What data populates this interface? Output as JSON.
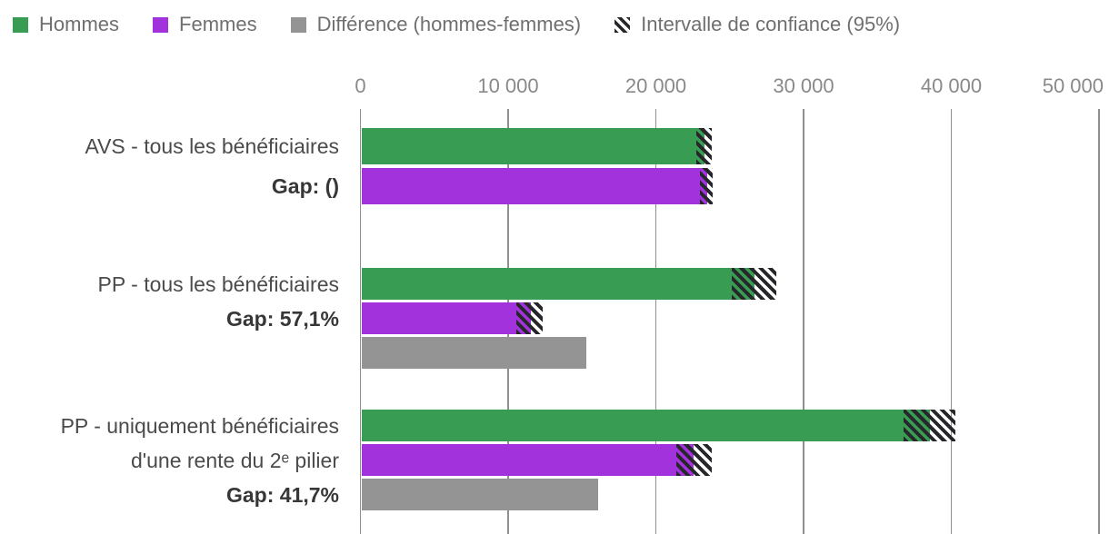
{
  "legend": {
    "items": [
      {
        "key": "hommes",
        "label": "Hommes",
        "swatch": "square",
        "color": "#389c53"
      },
      {
        "key": "femmes",
        "label": "Femmes",
        "swatch": "square",
        "color": "#a232dc"
      },
      {
        "key": "difference",
        "label": "Différence (hommes-femmes)",
        "swatch": "square",
        "color": "#949494"
      },
      {
        "key": "intervalle-confiance",
        "label": "Intervalle de confiance (95%)",
        "swatch": "hatch",
        "color": "#26262b"
      }
    ]
  },
  "chart_data": {
    "type": "bar",
    "orientation": "horizontal",
    "title": "",
    "xlabel": "",
    "ylabel": "",
    "axis": {
      "min": 0,
      "max": 50000,
      "ticks": [
        0,
        10000,
        20000,
        30000,
        40000,
        50000
      ],
      "tick_labels": [
        "0",
        "10 000",
        "20 000",
        "30 000",
        "40 000",
        "50 000"
      ],
      "grid": true,
      "tick_labels_position": "top"
    },
    "series_colors": {
      "hommes": "#389c53",
      "femmes": "#a232dc",
      "difference": "#949494"
    },
    "hatch_color": "#26262b",
    "legend_position": "top",
    "groups": [
      {
        "category": "AVS - tous les bénéficiaires",
        "gap_label": "Gap: ()",
        "label_lines": [
          {
            "text": "AVS - tous les bénéficiaires",
            "bold": false
          },
          {
            "text": "Gap: ()",
            "bold": true
          }
        ],
        "bars": [
          {
            "series": "hommes",
            "value": 23200,
            "ci_low": 22700,
            "ci_high": 23700
          },
          {
            "series": "femmes",
            "value": 23400,
            "ci_low": 22900,
            "ci_high": 23800
          }
        ]
      },
      {
        "category": "PP - tous les bénéficiaires",
        "gap_label": "Gap: 57,1%",
        "label_lines": [
          {
            "text": "PP - tous les bénéficiaires",
            "bold": false
          },
          {
            "text": "Gap: 57,1%",
            "bold": true
          }
        ],
        "bars": [
          {
            "series": "hommes",
            "value": 26600,
            "ci_low": 25100,
            "ci_high": 28100
          },
          {
            "series": "femmes",
            "value": 11450,
            "ci_low": 10500,
            "ci_high": 12300
          },
          {
            "series": "difference",
            "value": 15200
          }
        ]
      },
      {
        "category": "PP - uniquement bénéficiaires d'une rente du 2ᵉ pilier",
        "gap_label": "Gap: 41,7%",
        "label_lines": [
          {
            "text": "PP - uniquement bénéficiaires",
            "bold": false
          },
          {
            "text": "d'une rente du 2ᵉ pilier",
            "bold": false
          },
          {
            "text": "Gap: 41,7%",
            "bold": true
          }
        ],
        "bars": [
          {
            "series": "hommes",
            "value": 38500,
            "ci_low": 36700,
            "ci_high": 40200
          },
          {
            "series": "femmes",
            "value": 22500,
            "ci_low": 21300,
            "ci_high": 23700
          },
          {
            "series": "difference",
            "value": 16000
          }
        ]
      }
    ]
  }
}
